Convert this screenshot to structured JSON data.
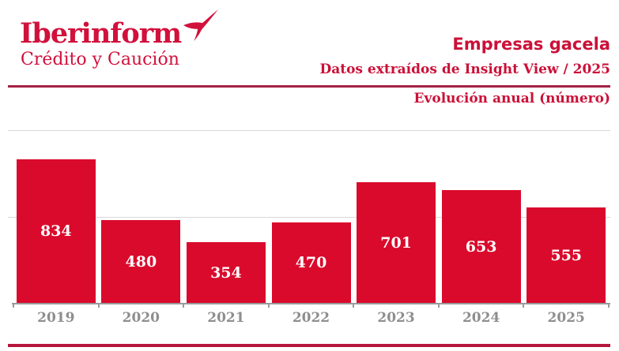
{
  "brand": {
    "logo_text": "Iberinform",
    "logo_subtitle": "Crédito y Caución",
    "logo_icon": "swallow-icon",
    "brand_color": "#d2103c"
  },
  "header": {
    "title": "Empresas gacela",
    "subtitle": "Datos extraídos de Insight View / 2025",
    "section_label": "Evolución anual (número)"
  },
  "colors": {
    "bar": "#da0a2c",
    "heading_text": "#cb1038",
    "divider_top": "#a32144",
    "divider_bottom": "#b5173c",
    "gridline": "#d8d8d8",
    "axis": "#9a9a9a",
    "year_label": "#8e8e8e",
    "value_label": "#ffffff"
  },
  "chart_data": {
    "type": "bar",
    "title": "Evolución anual (número)",
    "categories": [
      "2019",
      "2020",
      "2021",
      "2022",
      "2023",
      "2024",
      "2025"
    ],
    "values": [
      834,
      480,
      354,
      470,
      701,
      653,
      555
    ],
    "xlabel": "",
    "ylabel": "",
    "ylim": [
      0,
      1000
    ],
    "gridline_values": [
      500,
      1000
    ],
    "grid": true,
    "legend": false,
    "bar_color": "#da0a2c",
    "value_label_position": "center-inside"
  }
}
